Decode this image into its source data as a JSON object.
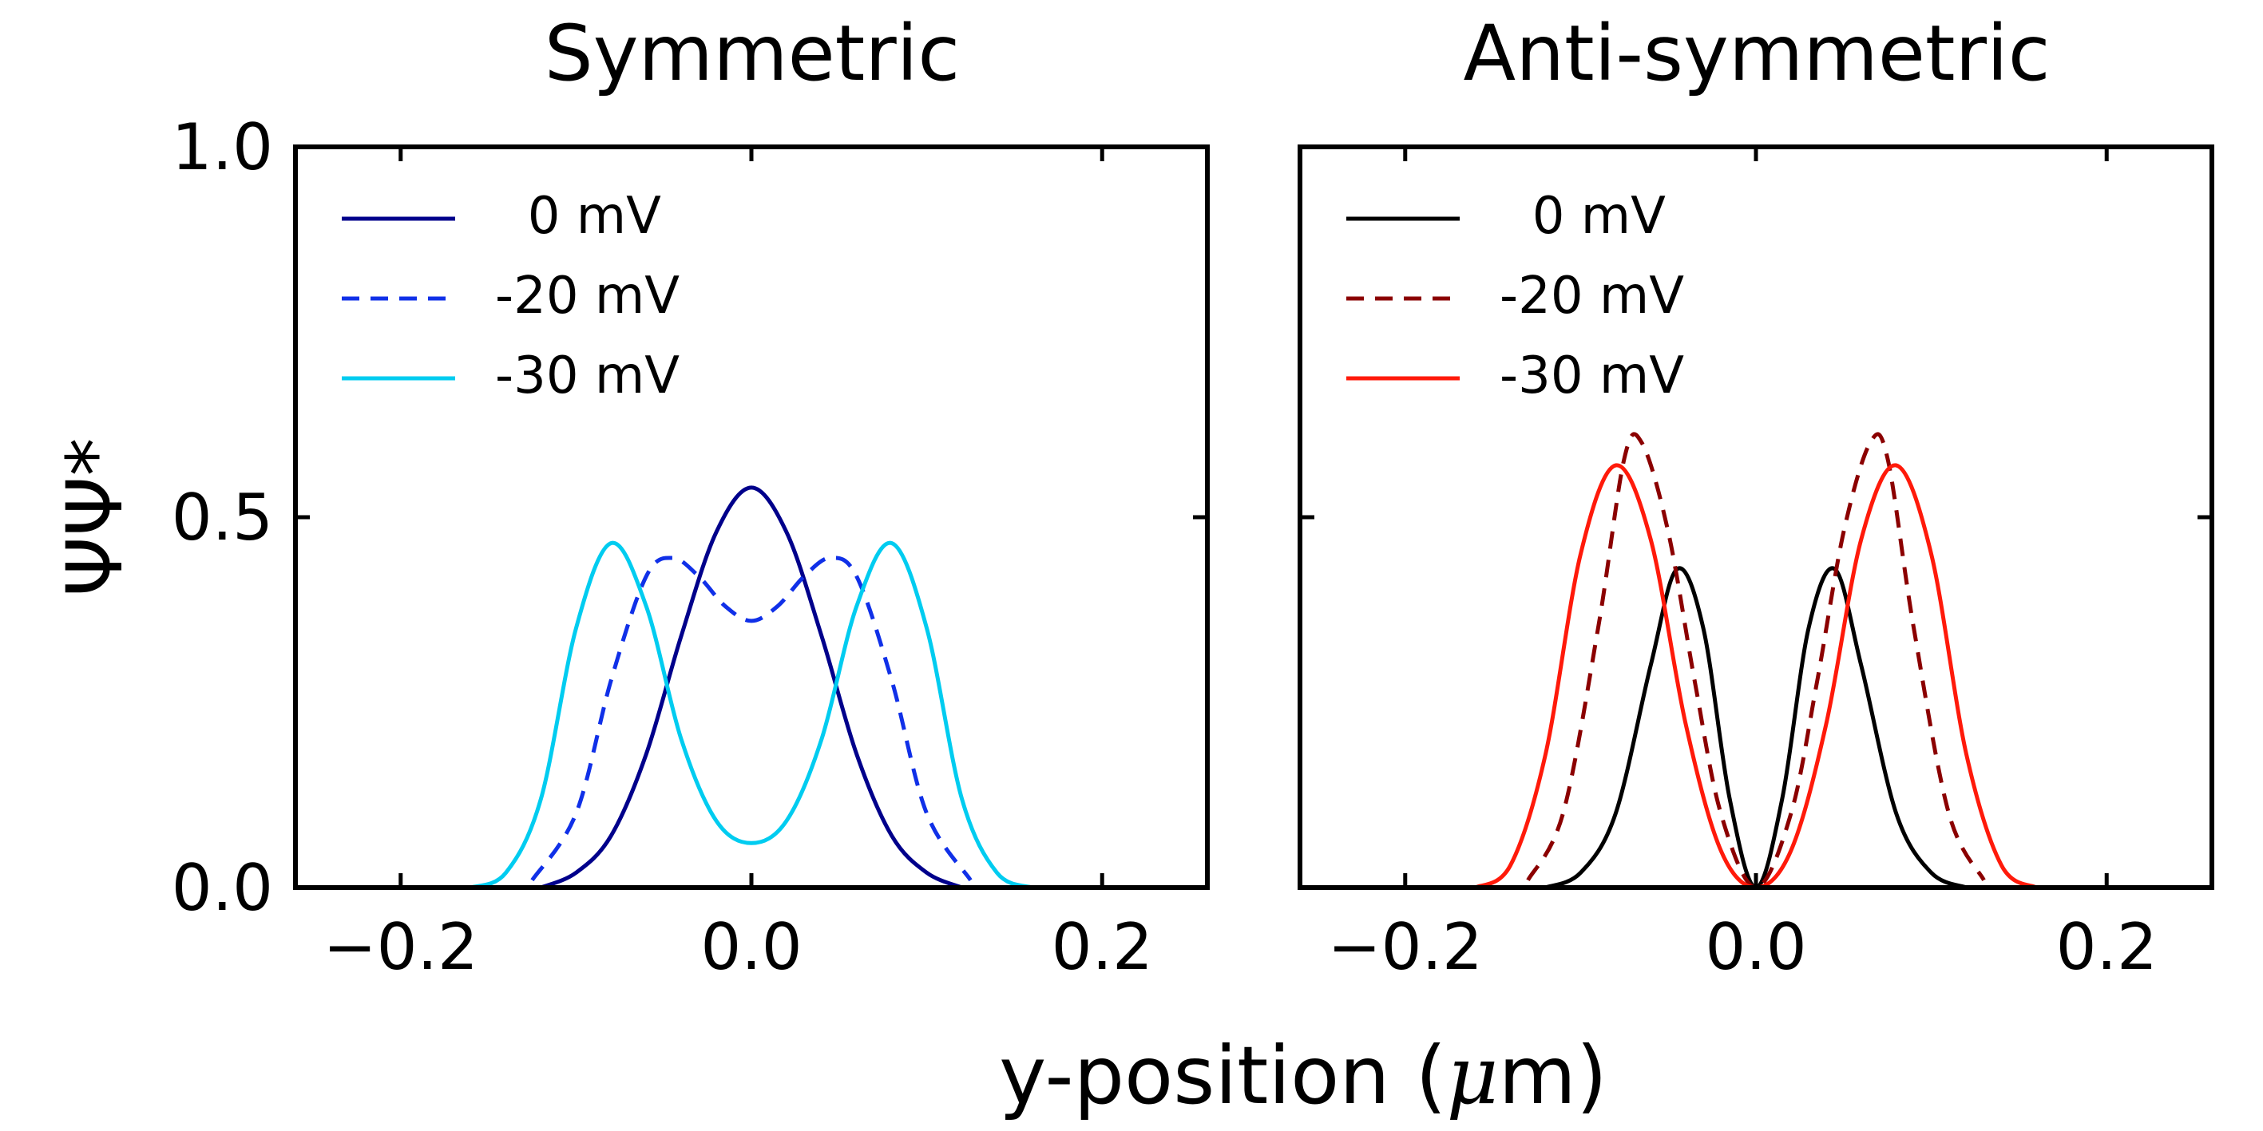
{
  "figure": {
    "xlabel_main": "y-position (",
    "xlabel_mu": "μ",
    "xlabel_end": "m)",
    "ylabel": "ΨΨ*"
  },
  "chart_data": [
    {
      "type": "line",
      "id": "symmetric",
      "title": "Symmetric",
      "xlabel": "y-position (μm)",
      "ylabel": "ΨΨ*",
      "xlim": [
        -0.26,
        0.26
      ],
      "ylim": [
        0.0,
        1.0
      ],
      "xticks": [
        -0.2,
        0.0,
        0.2
      ],
      "xtick_labels": [
        "−0.2",
        "0.0",
        "0.2"
      ],
      "yticks": [
        0.0,
        0.5,
        1.0
      ],
      "ytick_labels": [
        "0.0",
        "0.5",
        "1.0"
      ],
      "show_ytick_labels": true,
      "grid": false,
      "legend_position": "top-left",
      "series": [
        {
          "name": "0 mV",
          "label": "  0 mV",
          "color": "#00008b",
          "dash": "solid",
          "x": [
            -0.12,
            -0.1,
            -0.08,
            -0.06,
            -0.04,
            -0.02,
            0.0,
            0.02,
            0.04,
            0.06,
            0.08,
            0.1,
            0.12
          ],
          "y": [
            0.0,
            0.02,
            0.07,
            0.18,
            0.34,
            0.48,
            0.54,
            0.48,
            0.34,
            0.18,
            0.07,
            0.02,
            0.0
          ]
        },
        {
          "name": "-20 mV",
          "label": "-20 mV",
          "color": "#1030e8",
          "dash": "dashed",
          "x": [
            -0.125,
            -0.1,
            -0.08,
            -0.06,
            -0.045,
            -0.03,
            -0.015,
            0.0,
            0.015,
            0.03,
            0.045,
            0.06,
            0.08,
            0.1,
            0.125
          ],
          "y": [
            0.01,
            0.1,
            0.28,
            0.42,
            0.445,
            0.42,
            0.38,
            0.36,
            0.38,
            0.42,
            0.445,
            0.42,
            0.28,
            0.1,
            0.01
          ]
        },
        {
          "name": "-30 mV",
          "label": "-30 mV",
          "color": "#00ccf0",
          "dash": "solid",
          "x": [
            -0.16,
            -0.14,
            -0.12,
            -0.1,
            -0.08,
            -0.06,
            -0.04,
            -0.02,
            0.0,
            0.02,
            0.04,
            0.06,
            0.08,
            0.1,
            0.12,
            0.14,
            0.16
          ],
          "y": [
            0.0,
            0.02,
            0.12,
            0.35,
            0.465,
            0.38,
            0.2,
            0.09,
            0.06,
            0.09,
            0.2,
            0.38,
            0.465,
            0.35,
            0.12,
            0.02,
            0.0
          ]
        }
      ]
    },
    {
      "type": "line",
      "id": "antisymmetric",
      "title": "Anti-symmetric",
      "xlabel": "y-position (μm)",
      "ylabel": "ΨΨ*",
      "xlim": [
        -0.26,
        0.26
      ],
      "ylim": [
        0.0,
        1.0
      ],
      "xticks": [
        -0.2,
        0.0,
        0.2
      ],
      "xtick_labels": [
        "−0.2",
        "0.0",
        "0.2"
      ],
      "yticks": [
        0.0,
        0.5,
        1.0
      ],
      "ytick_labels": [
        "0.0",
        "0.5",
        "1.0"
      ],
      "show_ytick_labels": false,
      "grid": false,
      "legend_position": "top-left",
      "series": [
        {
          "name": "0 mV",
          "label": "  0 mV",
          "color": "#000000",
          "dash": "solid",
          "x": [
            -0.12,
            -0.1,
            -0.08,
            -0.06,
            -0.045,
            -0.03,
            -0.015,
            0.0,
            0.015,
            0.03,
            0.045,
            0.06,
            0.08,
            0.1,
            0.12
          ],
          "y": [
            0.0,
            0.02,
            0.1,
            0.3,
            0.43,
            0.35,
            0.12,
            0.0,
            0.12,
            0.35,
            0.43,
            0.3,
            0.1,
            0.02,
            0.0
          ]
        },
        {
          "name": "-20 mV",
          "label": "-20 mV",
          "color": "#8b0000",
          "dash": "dashed",
          "x": [
            -0.13,
            -0.11,
            -0.09,
            -0.075,
            -0.065,
            -0.05,
            -0.035,
            -0.02,
            0.0,
            0.02,
            0.035,
            0.05,
            0.065,
            0.075,
            0.09,
            0.11,
            0.13
          ],
          "y": [
            0.01,
            0.1,
            0.35,
            0.58,
            0.6,
            0.48,
            0.28,
            0.1,
            0.0,
            0.1,
            0.28,
            0.48,
            0.6,
            0.58,
            0.35,
            0.1,
            0.01
          ]
        },
        {
          "name": "-30 mV",
          "label": "-30 mV",
          "color": "#ff1a0a",
          "dash": "solid",
          "x": [
            -0.16,
            -0.14,
            -0.12,
            -0.1,
            -0.08,
            -0.06,
            -0.04,
            -0.02,
            0.0,
            0.02,
            0.04,
            0.06,
            0.08,
            0.1,
            0.12,
            0.14,
            0.16
          ],
          "y": [
            0.0,
            0.03,
            0.18,
            0.45,
            0.57,
            0.47,
            0.22,
            0.05,
            0.0,
            0.05,
            0.22,
            0.47,
            0.57,
            0.45,
            0.18,
            0.03,
            0.0
          ]
        }
      ]
    }
  ]
}
